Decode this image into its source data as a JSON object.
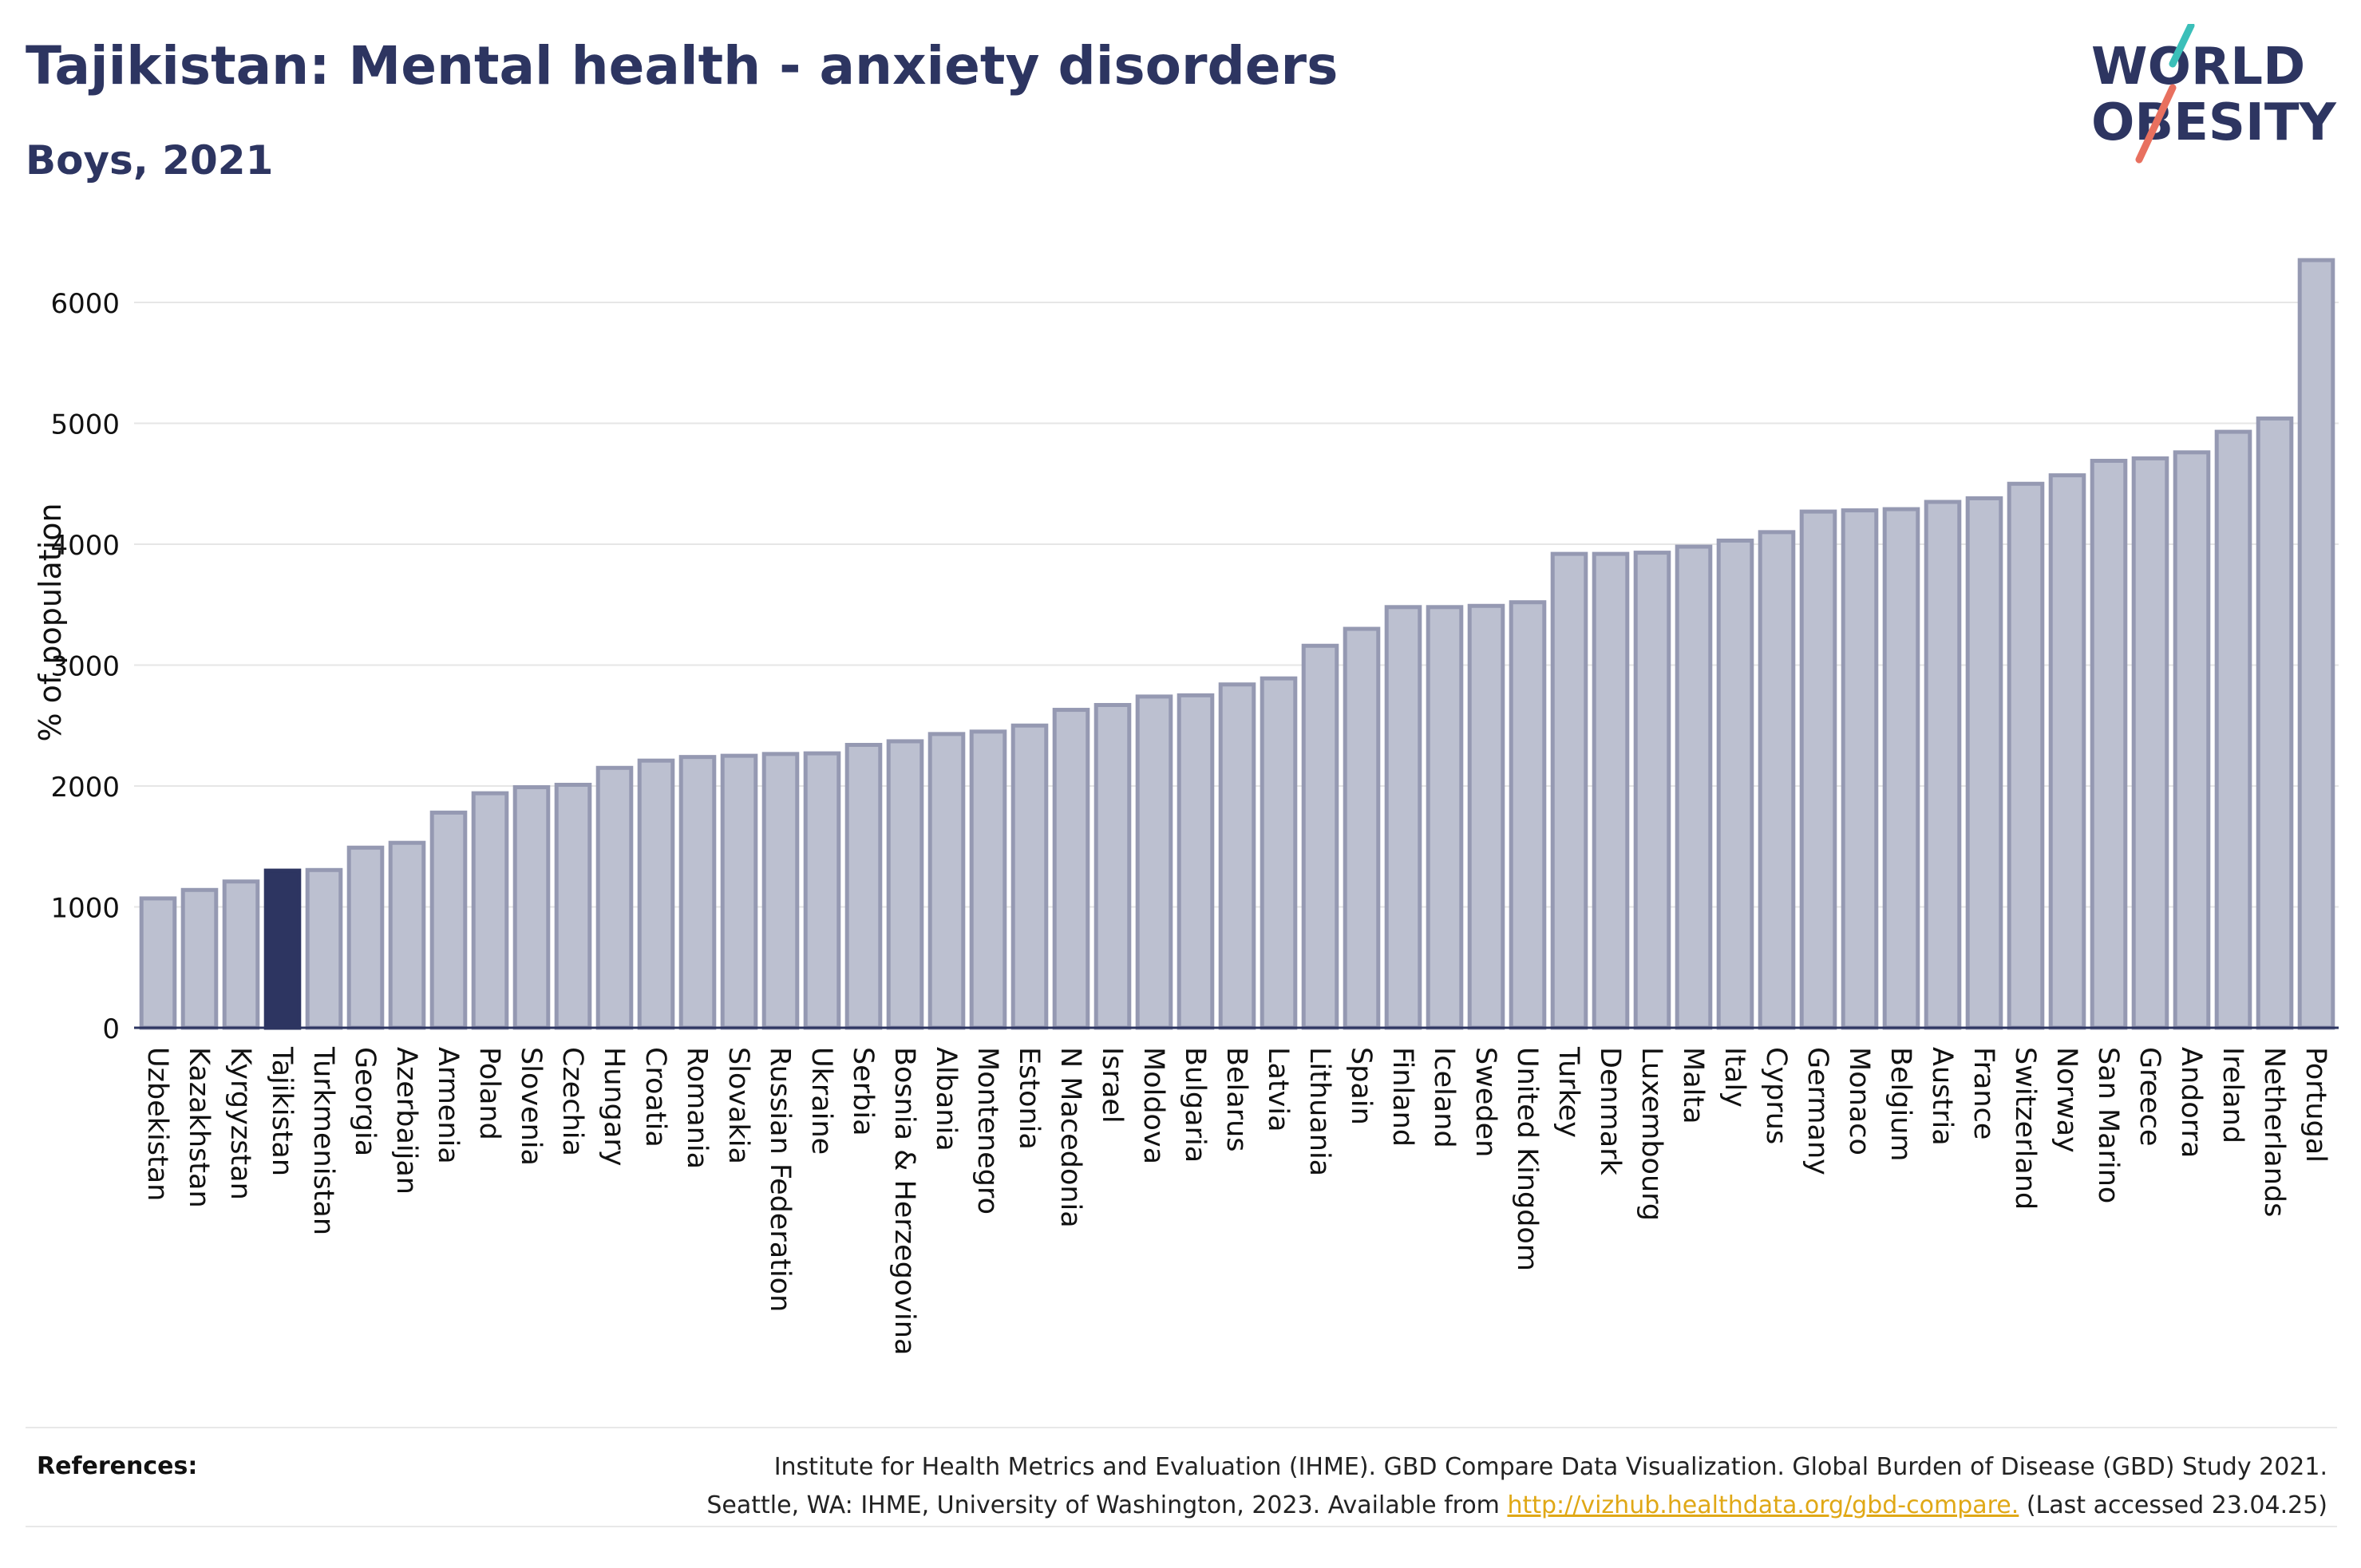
{
  "header": {
    "title": "Tajikistan: Mental health - anxiety disorders",
    "subtitle": "Boys, 2021"
  },
  "logo": {
    "line1": "WORLD",
    "line2": "OBESITY"
  },
  "colors": {
    "highlight": "#2d3561",
    "bar_fill": "#bcc0d0",
    "bar_stroke": "#9599b2",
    "text": "#2d3561"
  },
  "chart_data": {
    "type": "bar",
    "ylabel": "% of population",
    "xlabel": "",
    "ylim": [
      0,
      6500
    ],
    "yticks": [
      0,
      1000,
      2000,
      3000,
      4000,
      5000,
      6000
    ],
    "highlight": "Tajikistan",
    "grid": true,
    "categories": [
      "Uzbekistan",
      "Kazakhstan",
      "Kyrgyzstan",
      "Tajikistan",
      "Turkmenistan",
      "Georgia",
      "Azerbaijan",
      "Armenia",
      "Poland",
      "Slovenia",
      "Czechia",
      "Hungary",
      "Croatia",
      "Romania",
      "Slovakia",
      "Russian Federation",
      "Ukraine",
      "Serbia",
      "Bosnia & Herzegovina",
      "Albania",
      "Montenegro",
      "Estonia",
      "N Macedonia",
      "Israel",
      "Moldova",
      "Bulgaria",
      "Belarus",
      "Latvia",
      "Lithuania",
      "Spain",
      "Finland",
      "Iceland",
      "Sweden",
      "United Kingdom",
      "Turkey",
      "Denmark",
      "Luxembourg",
      "Malta",
      "Italy",
      "Cyprus",
      "Germany",
      "Monaco",
      "Belgium",
      "Austria",
      "France",
      "Switzerland",
      "Norway",
      "San Marino",
      "Greece",
      "Andorra",
      "Ireland",
      "Netherlands",
      "Portugal"
    ],
    "values": [
      1070,
      1140,
      1210,
      1300,
      1305,
      1490,
      1530,
      1780,
      1940,
      1990,
      2010,
      2150,
      2210,
      2240,
      2250,
      2265,
      2270,
      2340,
      2370,
      2430,
      2450,
      2500,
      2630,
      2670,
      2740,
      2750,
      2840,
      2890,
      3160,
      3300,
      3480,
      3480,
      3490,
      3520,
      3920,
      3920,
      3930,
      3980,
      4030,
      4100,
      4270,
      4280,
      4290,
      4350,
      4380,
      4500,
      4570,
      4690,
      4710,
      4760,
      4930,
      5040,
      6350
    ]
  },
  "references": {
    "label": "References:",
    "line1": "Institute for Health Metrics and Evaluation (IHME). GBD Compare Data Visualization. Global Burden of Disease (GBD) Study 2021.",
    "line2_pre": "Seattle, WA: IHME, University of Washington, 2023. Available from ",
    "link": "http://vizhub.healthdata.org/gbd-compare.",
    "line2_post": " (Last accessed 23.04.25)"
  }
}
